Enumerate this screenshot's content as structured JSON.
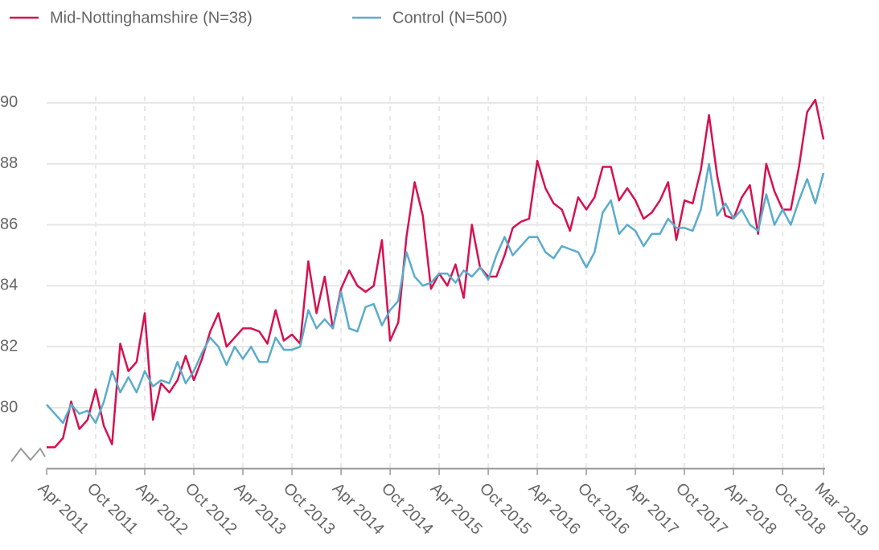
{
  "chart_data": {
    "type": "line",
    "categories": [
      "Apr 2011",
      null,
      null,
      null,
      null,
      null,
      "Oct 2011",
      null,
      null,
      null,
      null,
      null,
      "Apr 2012",
      null,
      null,
      null,
      null,
      null,
      "Oct 2012",
      null,
      null,
      null,
      null,
      null,
      "Apr 2013",
      null,
      null,
      null,
      null,
      null,
      "Oct 2013",
      null,
      null,
      null,
      null,
      null,
      "Apr 2014",
      null,
      null,
      null,
      null,
      null,
      "Oct 2014",
      null,
      null,
      null,
      null,
      null,
      "Apr 2015",
      null,
      null,
      null,
      null,
      null,
      "Oct 2015",
      null,
      null,
      null,
      null,
      null,
      "Apr 2016",
      null,
      null,
      null,
      null,
      null,
      "Oct 2016",
      null,
      null,
      null,
      null,
      null,
      "Apr 2017",
      null,
      null,
      null,
      null,
      null,
      "Oct 2017",
      null,
      null,
      null,
      null,
      null,
      "Apr 2018",
      null,
      null,
      null,
      null,
      null,
      "Oct 2018",
      null,
      null,
      null,
      null,
      "Mar 2019"
    ],
    "series": [
      {
        "name": "Mid-Nottinghamshire (N=38)",
        "color": "#d6114f",
        "values": [
          78.7,
          78.7,
          79.0,
          80.2,
          79.3,
          79.6,
          80.6,
          79.4,
          78.8,
          82.1,
          81.2,
          81.5,
          83.1,
          79.6,
          80.8,
          80.5,
          80.9,
          81.7,
          80.9,
          81.6,
          82.5,
          83.1,
          82.0,
          82.3,
          82.6,
          82.6,
          82.5,
          82.1,
          83.2,
          82.2,
          82.4,
          82.1,
          84.8,
          83.1,
          84.3,
          82.6,
          83.9,
          84.5,
          84.0,
          83.8,
          84.0,
          85.5,
          82.2,
          82.8,
          85.6,
          87.4,
          86.3,
          83.9,
          84.4,
          84.0,
          84.7,
          83.6,
          86.0,
          84.6,
          84.3,
          84.3,
          85.0,
          85.9,
          86.1,
          86.2,
          88.1,
          87.2,
          86.7,
          86.5,
          85.8,
          86.9,
          86.5,
          86.9,
          87.9,
          87.9,
          86.8,
          87.2,
          86.8,
          86.2,
          86.4,
          86.8,
          87.4,
          85.5,
          86.8,
          86.7,
          87.8,
          89.6,
          87.6,
          86.3,
          86.2,
          86.9,
          87.3,
          85.7,
          88.0,
          87.1,
          86.5,
          86.5,
          87.9,
          89.7,
          90.1,
          88.8
        ]
      },
      {
        "name": "Control (N=500)",
        "color": "#5aaccc",
        "values": [
          80.1,
          79.8,
          79.5,
          80.1,
          79.8,
          79.9,
          79.5,
          80.2,
          81.2,
          80.5,
          81.0,
          80.5,
          81.2,
          80.7,
          80.9,
          80.8,
          81.5,
          80.8,
          81.2,
          81.8,
          82.3,
          82.0,
          81.4,
          82.0,
          81.6,
          82.0,
          81.5,
          81.5,
          82.3,
          81.9,
          81.9,
          82.0,
          83.2,
          82.6,
          82.9,
          82.6,
          83.8,
          82.6,
          82.5,
          83.3,
          83.4,
          82.7,
          83.2,
          83.5,
          85.1,
          84.3,
          84.0,
          84.1,
          84.4,
          84.4,
          84.1,
          84.5,
          84.3,
          84.6,
          84.2,
          85.0,
          85.6,
          85.0,
          85.3,
          85.6,
          85.6,
          85.1,
          84.9,
          85.3,
          85.2,
          85.1,
          84.6,
          85.1,
          86.4,
          86.8,
          85.7,
          86.0,
          85.8,
          85.3,
          85.7,
          85.7,
          86.2,
          85.9,
          85.9,
          85.8,
          86.5,
          88.0,
          86.3,
          86.7,
          86.2,
          86.5,
          86.0,
          85.8,
          87.0,
          86.0,
          86.5,
          86.0,
          86.8,
          87.5,
          86.7,
          87.7
        ]
      }
    ],
    "ylim": [
      78,
      91
    ],
    "yticks": [
      80,
      82,
      84,
      86,
      88,
      90
    ],
    "grid": true
  }
}
